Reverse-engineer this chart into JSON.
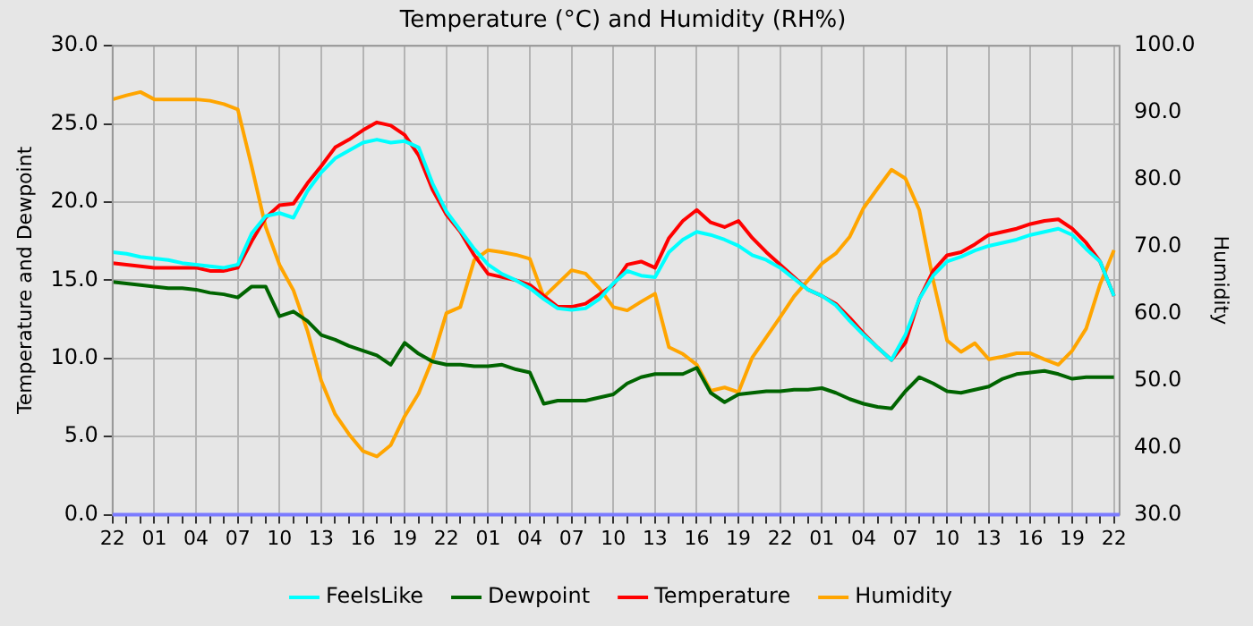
{
  "chart_data": {
    "type": "line",
    "title": "Temperature (°C) and Humidity (RH%)",
    "ylabel": "Temperature and Dewpoint",
    "y2label": "Humidity",
    "categories": [
      "22",
      null,
      null,
      "01",
      null,
      null,
      "04",
      null,
      null,
      "07",
      null,
      null,
      "10",
      null,
      null,
      "13",
      null,
      null,
      "16",
      null,
      null,
      "19",
      null,
      null,
      "22",
      null,
      null,
      "01",
      null,
      null,
      "04",
      null,
      null,
      "07",
      null,
      null,
      "10",
      null,
      null,
      "13",
      null,
      null,
      "16",
      null,
      null,
      "19",
      null,
      null,
      "22",
      null,
      null,
      "01",
      null,
      null,
      "04",
      null,
      null,
      "07",
      null,
      null,
      "10",
      null,
      null,
      "13",
      null,
      null,
      "16",
      null,
      null,
      "19",
      null,
      null,
      "22"
    ],
    "ylim": [
      0,
      30
    ],
    "yticks": [
      {
        "value": 0,
        "label": "0.0"
      },
      {
        "value": 5,
        "label": "5.0"
      },
      {
        "value": 10,
        "label": "10.0"
      },
      {
        "value": 15,
        "label": "15.0"
      },
      {
        "value": 20,
        "label": "20.0"
      },
      {
        "value": 25,
        "label": "25.0"
      },
      {
        "value": 30,
        "label": "30.0"
      }
    ],
    "y2lim": [
      30,
      100
    ],
    "y2ticks": [
      {
        "value": 30,
        "label": "30.0"
      },
      {
        "value": 40,
        "label": "40.0"
      },
      {
        "value": 50,
        "label": "50.0"
      },
      {
        "value": 60,
        "label": "60.0"
      },
      {
        "value": 70,
        "label": "70.0"
      },
      {
        "value": 80,
        "label": "80.0"
      },
      {
        "value": 90,
        "label": "90.0"
      },
      {
        "value": 100,
        "label": "100.0"
      }
    ],
    "grid": true,
    "legend": "bottom",
    "marker": "none",
    "line_style": "solid",
    "series": [
      {
        "name": "FeelsLike",
        "color": "#00ffff",
        "values": [
          16.8,
          16.7,
          16.5,
          16.4,
          16.3,
          16.1,
          16.0,
          15.9,
          15.8,
          16.0,
          18.0,
          19.1,
          19.3,
          19.0,
          20.7,
          21.9,
          22.8,
          23.3,
          23.8,
          24.0,
          23.8,
          23.9,
          23.5,
          21.2,
          19.4,
          18.2,
          17.0,
          16.0,
          15.4,
          15.0,
          14.5,
          13.8,
          13.2,
          13.1,
          13.2,
          13.8,
          14.8,
          15.6,
          15.3,
          15.2,
          16.8,
          17.6,
          18.1,
          17.9,
          17.6,
          17.2,
          16.6,
          16.3,
          15.8,
          15.1,
          14.4,
          14.0,
          13.4,
          12.4,
          11.5,
          10.7,
          9.9,
          11.5,
          13.8,
          15.3,
          16.2,
          16.5,
          16.9,
          17.2,
          17.4,
          17.6,
          17.9,
          18.1,
          18.3,
          17.9,
          17.0,
          16.2,
          14.0
        ]
      },
      {
        "name": "Dewpoint",
        "color": "#006400",
        "values": [
          14.9,
          14.8,
          14.7,
          14.6,
          14.5,
          14.5,
          14.4,
          14.2,
          14.1,
          13.9,
          14.6,
          14.6,
          12.7,
          13.0,
          12.4,
          11.5,
          11.2,
          10.8,
          10.5,
          10.2,
          9.6,
          11.0,
          10.3,
          9.8,
          9.6,
          9.6,
          9.5,
          9.5,
          9.6,
          9.3,
          9.1,
          7.1,
          7.3,
          7.3,
          7.3,
          7.5,
          7.7,
          8.4,
          8.8,
          9.0,
          9.0,
          9.0,
          9.4,
          7.8,
          7.2,
          7.7,
          7.8,
          7.9,
          7.9,
          8.0,
          8.0,
          8.1,
          7.8,
          7.4,
          7.1,
          6.9,
          6.8,
          7.9,
          8.8,
          8.4,
          7.9,
          7.8,
          8.0,
          8.2,
          8.7,
          9.0,
          9.1,
          9.2,
          9.0,
          8.7,
          8.8,
          8.8,
          8.8
        ]
      },
      {
        "name": "Temperature",
        "color": "#ff0000",
        "values": [
          16.1,
          16.0,
          15.9,
          15.8,
          15.8,
          15.8,
          15.8,
          15.6,
          15.6,
          15.8,
          17.5,
          19.0,
          19.8,
          19.9,
          21.2,
          22.3,
          23.5,
          24.0,
          24.6,
          25.1,
          24.9,
          24.3,
          23.0,
          20.8,
          19.2,
          18.1,
          16.6,
          15.4,
          15.2,
          15.0,
          14.7,
          14.0,
          13.3,
          13.3,
          13.5,
          14.1,
          14.7,
          16.0,
          16.2,
          15.8,
          17.7,
          18.8,
          19.5,
          18.7,
          18.4,
          18.8,
          17.7,
          16.8,
          16.0,
          15.2,
          14.4,
          14.0,
          13.5,
          12.6,
          11.6,
          10.7,
          9.9,
          11.0,
          13.8,
          15.6,
          16.6,
          16.8,
          17.3,
          17.9,
          18.1,
          18.3,
          18.6,
          18.8,
          18.9,
          18.3,
          17.4,
          16.2,
          14.0
        ]
      },
      {
        "name": "Humidity",
        "color": "#ffa500",
        "axis": "y2",
        "values": [
          92.0,
          92.6,
          93.1,
          92.0,
          92.0,
          92.0,
          92.0,
          91.8,
          91.3,
          90.5,
          82.0,
          73.0,
          67.3,
          63.5,
          57.5,
          50.0,
          45.0,
          42.0,
          39.5,
          38.7,
          40.4,
          44.7,
          48.1,
          53.2,
          60.1,
          61.0,
          68.0,
          69.5,
          69.2,
          68.8,
          68.2,
          62.5,
          64.5,
          66.5,
          66.0,
          63.8,
          61.0,
          60.5,
          61.8,
          63.0,
          55.0,
          54.0,
          52.4,
          48.5,
          49.0,
          48.3,
          53.5,
          56.5,
          59.5,
          62.6,
          65.0,
          67.5,
          69.0,
          71.5,
          75.8,
          78.7,
          81.5,
          80.2,
          75.5,
          65.0,
          56.0,
          54.3,
          55.6,
          53.2,
          53.6,
          54.1,
          54.1,
          53.2,
          52.4,
          54.5,
          57.8,
          64.4,
          69.5
        ]
      }
    ]
  }
}
